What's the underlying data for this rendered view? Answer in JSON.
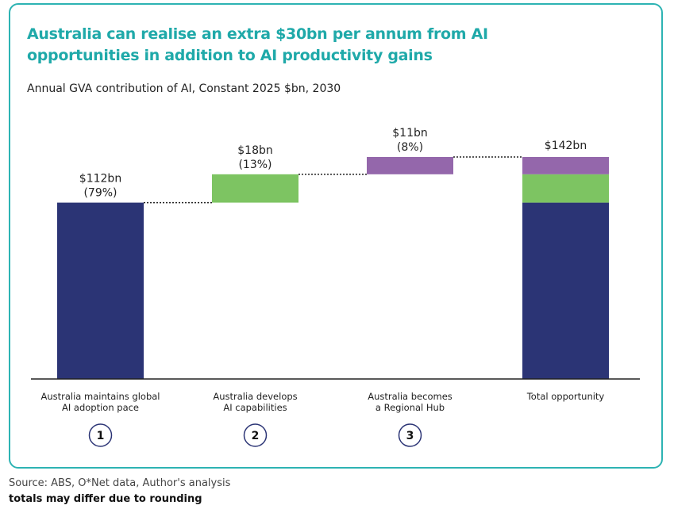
{
  "title": "Australia can realise an extra $30bn per annum from AI opportunities in addition to AI productivity gains",
  "subtitle": "Annual GVA contribution of AI, Constant 2025 $bn, 2030",
  "source": "Source: ABS, O*Net data, Author's analysis",
  "note": "totals may differ due to rounding",
  "colors": {
    "frame": "#2db3b3",
    "title": "#1fa9a9",
    "navy": "#2b3475",
    "green": "#7dc462",
    "purple": "#9467ab"
  },
  "chart_data": {
    "type": "bar",
    "subtype": "waterfall",
    "categories": [
      "Australia maintains global\nAI adoption pace",
      "Australia develops\nAI capabilities",
      "Australia becomes\na Regional Hub",
      "Total opportunity"
    ],
    "steps": [
      "1",
      "2",
      "3",
      ""
    ],
    "values": [
      112,
      18,
      11,
      142
    ],
    "data_labels": [
      [
        "$112bn",
        "(79%)"
      ],
      [
        "$18bn",
        "(13%)"
      ],
      [
        "$11bn",
        "(8%)"
      ],
      [
        "$142bn"
      ]
    ],
    "ylim": [
      0,
      142
    ],
    "grid": false,
    "connectors": "dotted"
  }
}
